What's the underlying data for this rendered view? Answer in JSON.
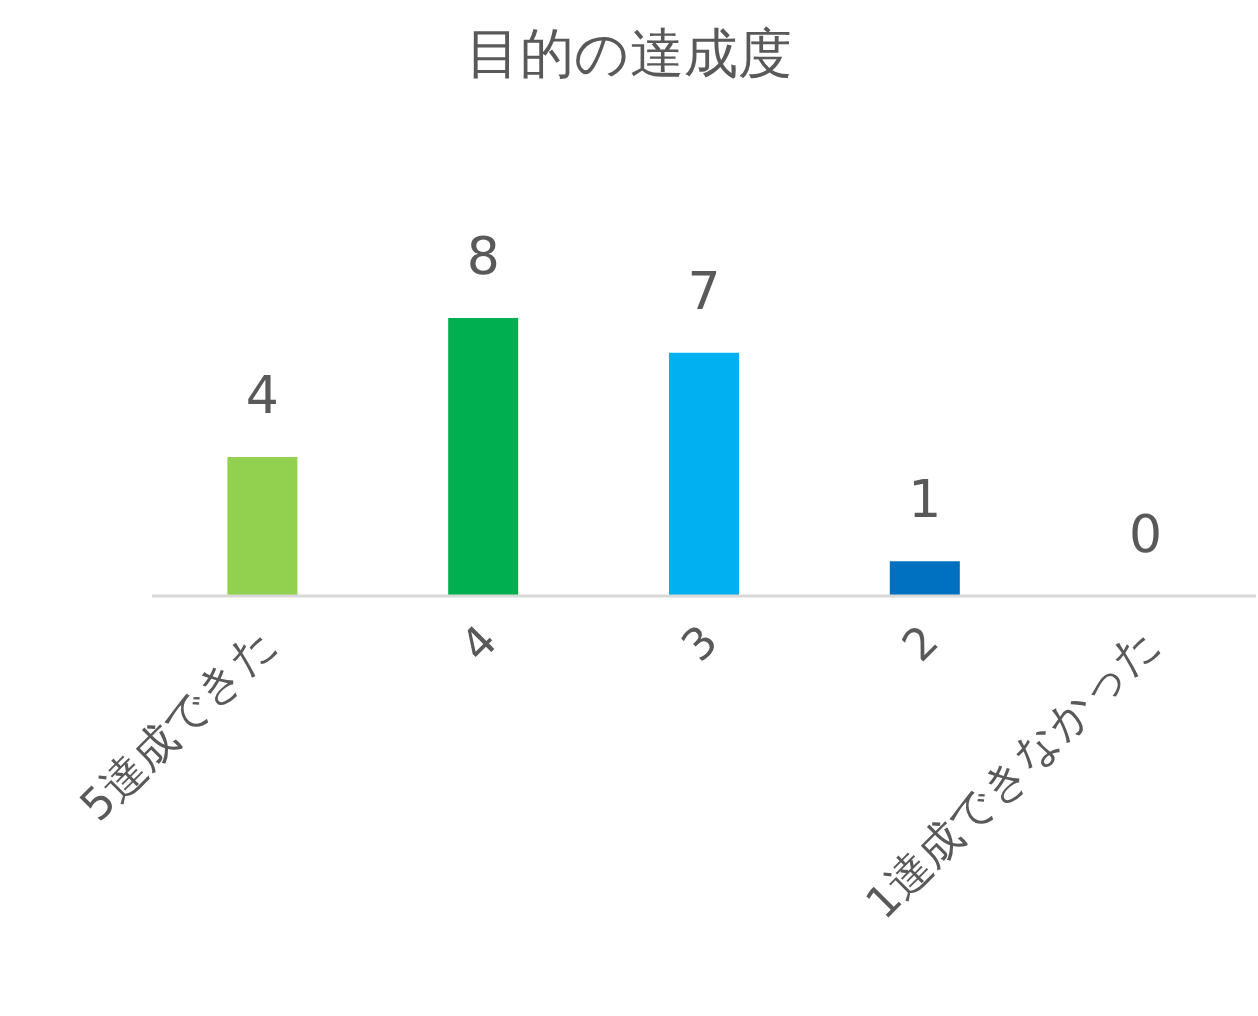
{
  "chart_data": {
    "type": "bar",
    "title": "目的の達成度",
    "categories": [
      "5達成できた",
      "4",
      "3",
      "2",
      "1達成できなかった"
    ],
    "values": [
      4,
      8,
      7,
      1,
      0
    ],
    "colors": [
      "#92d050",
      "#00b050",
      "#00b0f0",
      "#0070c0",
      "#002060"
    ],
    "data_labels": true
  }
}
